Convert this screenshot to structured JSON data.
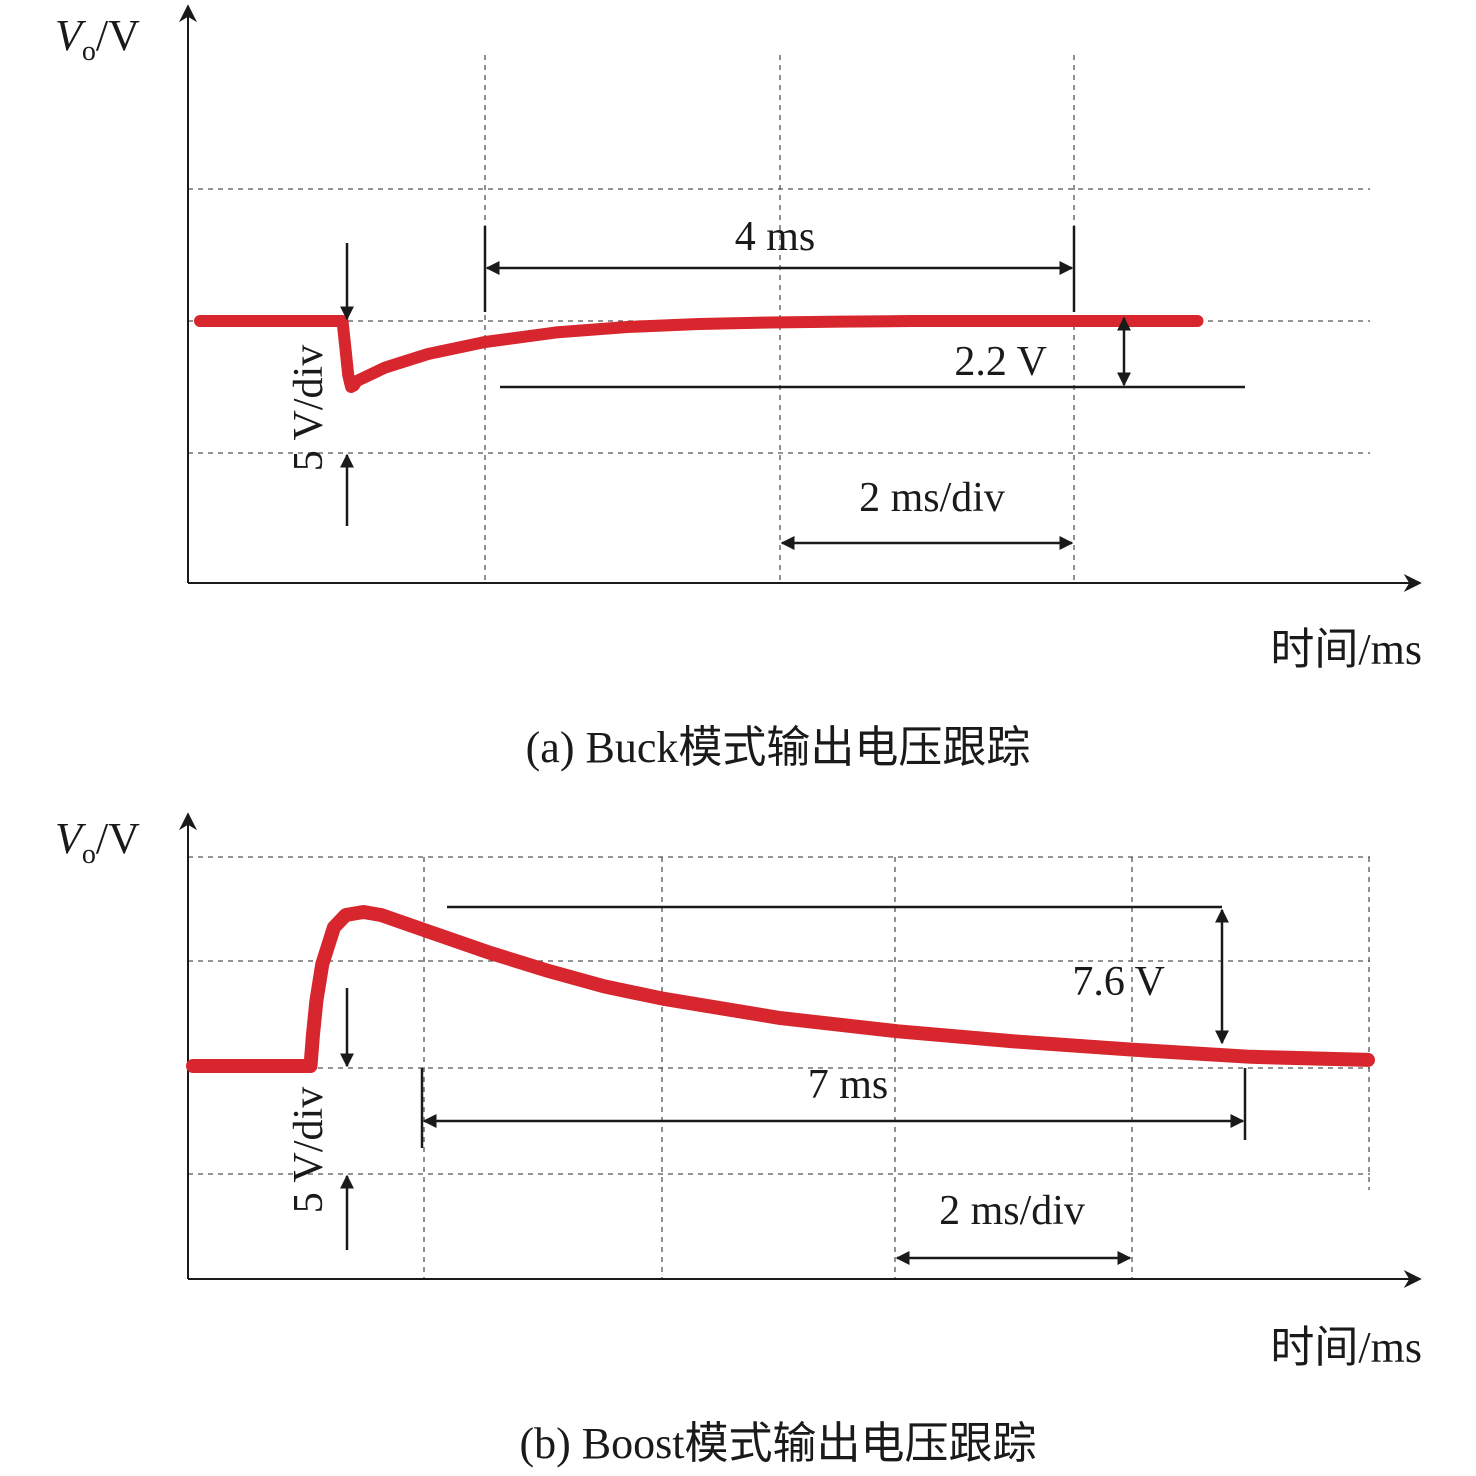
{
  "colors": {
    "trace": "#d7262d",
    "ink": "#1a1a1a",
    "grid": "#555555"
  },
  "chart_data": [
    {
      "type": "line",
      "panel": "a",
      "caption": "(a) Buck模式输出电压跟踪",
      "ylabel_main": "V",
      "ylabel_sub": "o",
      "ylabel_unit": "/V",
      "xlabel": "时间/ms",
      "x_div_label": "2 ms/div",
      "y_div_label": "5 V/div",
      "x_per_div_ms": 2,
      "y_per_div_V": 5,
      "grid": true,
      "annotations": {
        "settling_time": "4 ms",
        "deviation": "2.2 V"
      },
      "series": [
        {
          "x": [
            0,
            1.0,
            1.02,
            1.04,
            1.06,
            1.08,
            1.1,
            1.3,
            1.6,
            2.0,
            2.5,
            3.0,
            3.5,
            4.0,
            4.5,
            5.0,
            6.0,
            7.0
          ],
          "y": [
            0,
            0,
            -0.9,
            -1.8,
            -2.2,
            -2.15,
            -2.0,
            -1.55,
            -1.1,
            -0.7,
            -0.38,
            -0.2,
            -0.1,
            -0.05,
            -0.02,
            0,
            0,
            0
          ]
        }
      ]
    },
    {
      "type": "line",
      "panel": "b",
      "caption": "(b) Boost模式输出电压跟踪",
      "ylabel_main": "V",
      "ylabel_sub": "o",
      "ylabel_unit": "/V",
      "xlabel": "时间/ms",
      "x_div_label": "2 ms/div",
      "y_div_label": "5 V/div",
      "x_per_div_ms": 2,
      "y_per_div_V": 5,
      "grid": true,
      "annotations": {
        "settling_time": "7 ms",
        "deviation": "7.6 V"
      },
      "series": [
        {
          "x": [
            0,
            1.0,
            1.02,
            1.05,
            1.1,
            1.2,
            1.3,
            1.45,
            1.6,
            2.0,
            2.5,
            3.0,
            3.5,
            4.0,
            5.0,
            6.0,
            7.0,
            8.0,
            9.0,
            10.0
          ],
          "y": [
            0,
            0,
            1.5,
            3.2,
            5.0,
            6.8,
            7.4,
            7.55,
            7.4,
            6.6,
            5.6,
            4.7,
            3.9,
            3.3,
            2.35,
            1.7,
            1.2,
            0.8,
            0.45,
            0.3
          ]
        }
      ]
    }
  ]
}
